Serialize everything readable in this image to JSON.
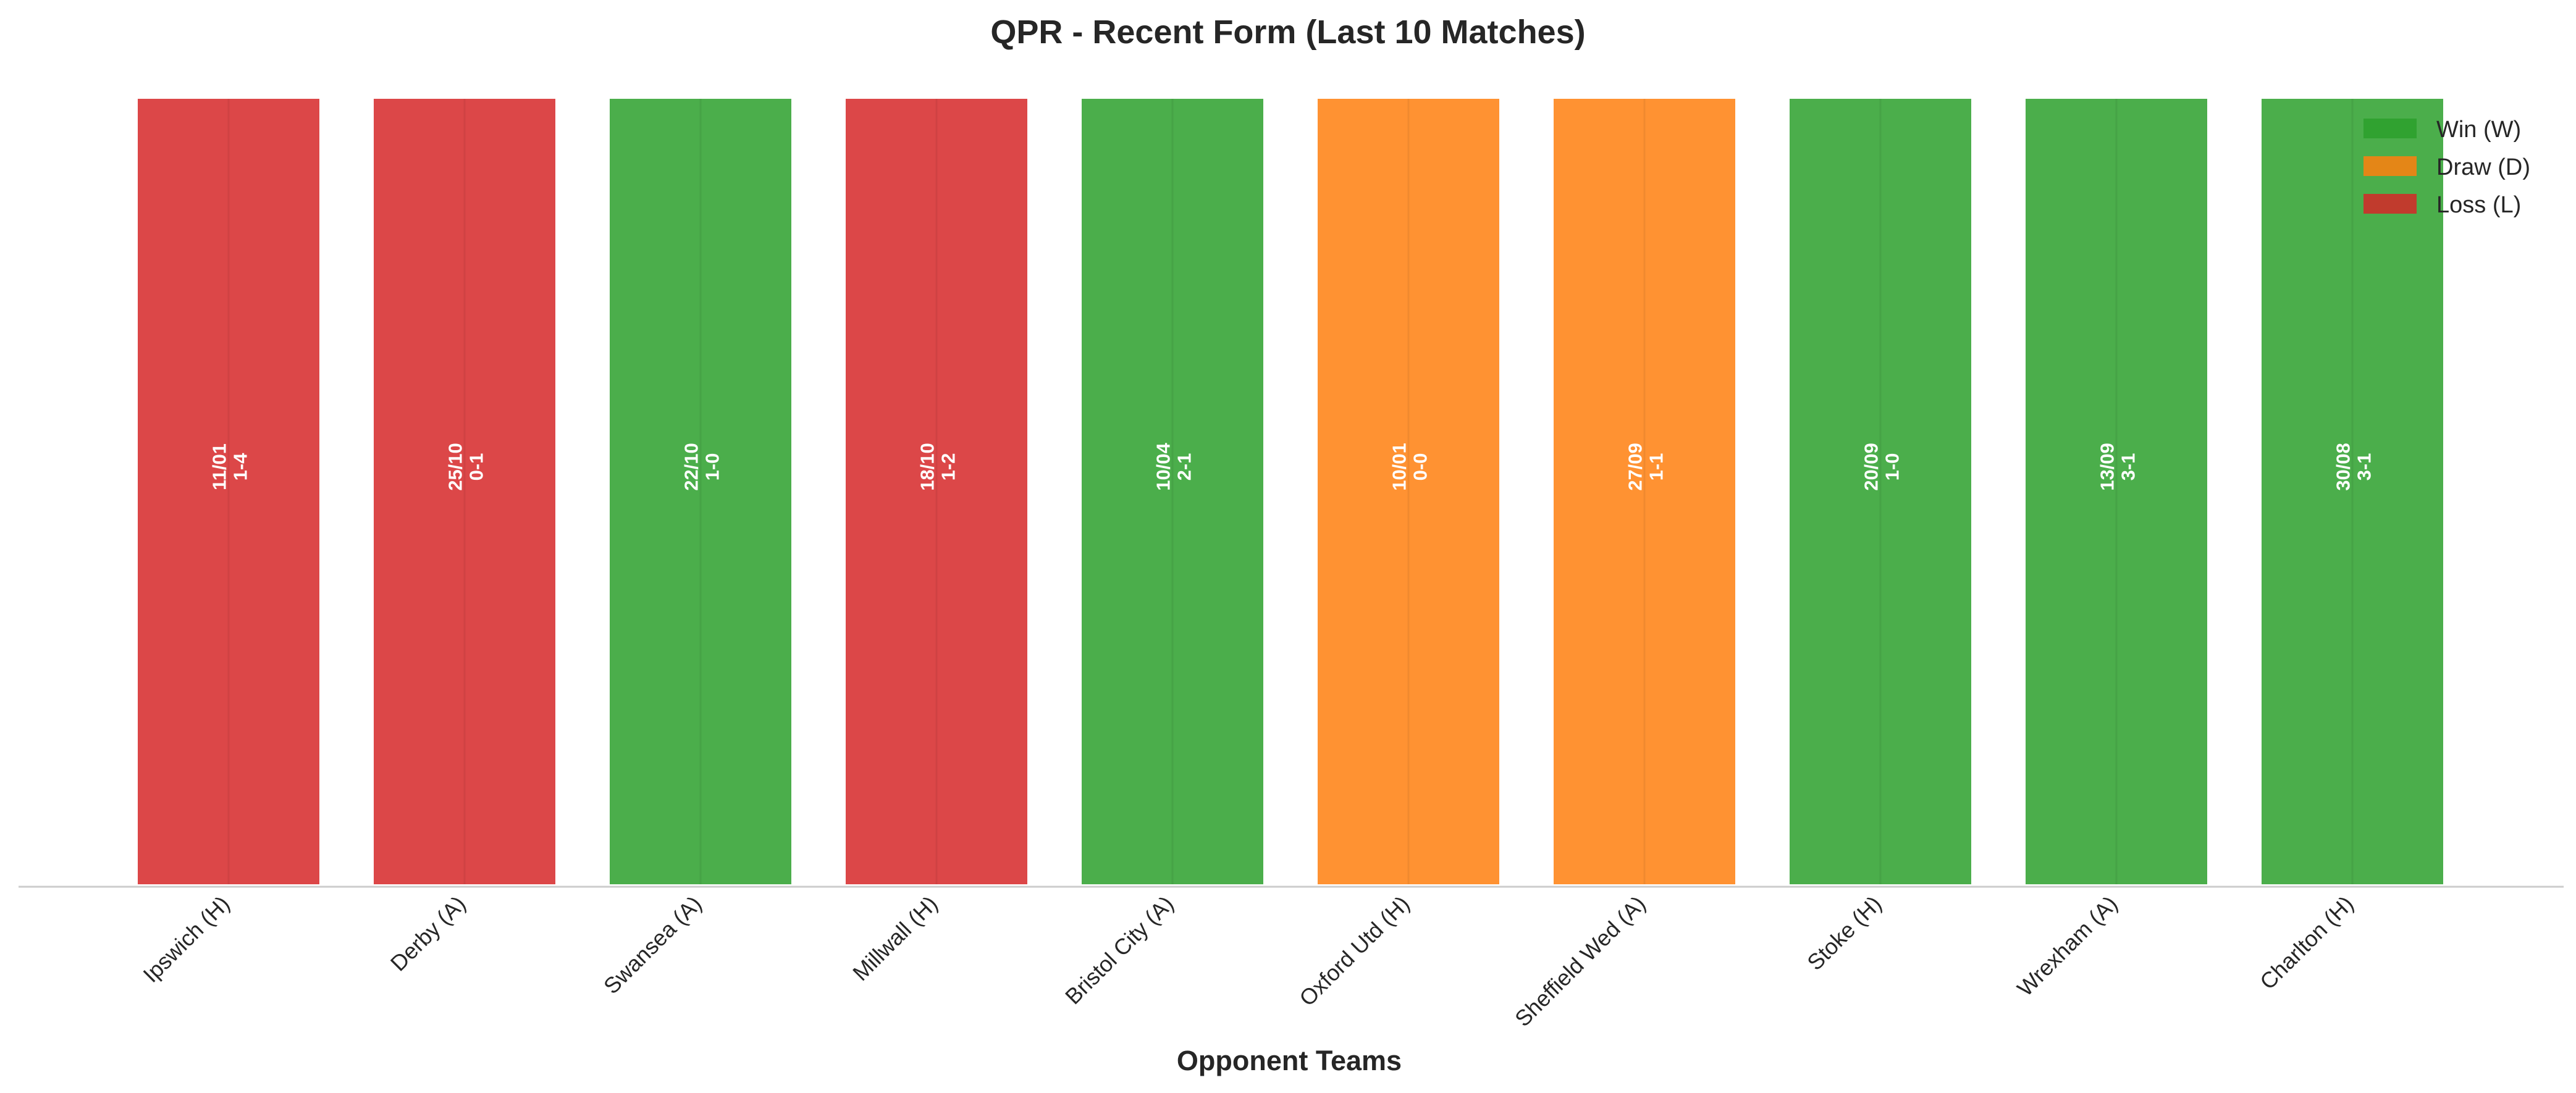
{
  "chart_data": {
    "type": "bar",
    "title": "QPR - Recent Form (Last 10 Matches)",
    "xlabel": "Opponent Teams",
    "ylabel": "",
    "grid": false,
    "legend_position": "top-right",
    "categories": [
      "Ipswich (H)",
      "Derby (A)",
      "Swansea (A)",
      "Millwall (H)",
      "Bristol City (A)",
      "Oxford Utd (H)",
      "Sheffield Wed (A)",
      "Stoke (H)",
      "Wrexham (A)",
      "Charlton (H)"
    ],
    "values": [
      1,
      1,
      1,
      1,
      1,
      1,
      1,
      1,
      1,
      1
    ],
    "results": [
      "L",
      "L",
      "W",
      "L",
      "W",
      "D",
      "D",
      "W",
      "W",
      "W"
    ],
    "dates": [
      "11/01",
      "25/10",
      "22/10",
      "18/10",
      "10/04",
      "10/01",
      "27/09",
      "20/09",
      "13/09",
      "30/08"
    ],
    "scores": [
      "1-4",
      "0-1",
      "1-0",
      "1-2",
      "2-1",
      "0-0",
      "1-1",
      "1-0",
      "3-1",
      "3-1"
    ],
    "legend": [
      {
        "key": "W",
        "label": "Win (W)",
        "color": "#2ca02c"
      },
      {
        "key": "D",
        "label": "Draw (D)",
        "color": "#ff7f0e"
      },
      {
        "key": "L",
        "label": "Loss (L)",
        "color": "#d62728"
      }
    ]
  }
}
